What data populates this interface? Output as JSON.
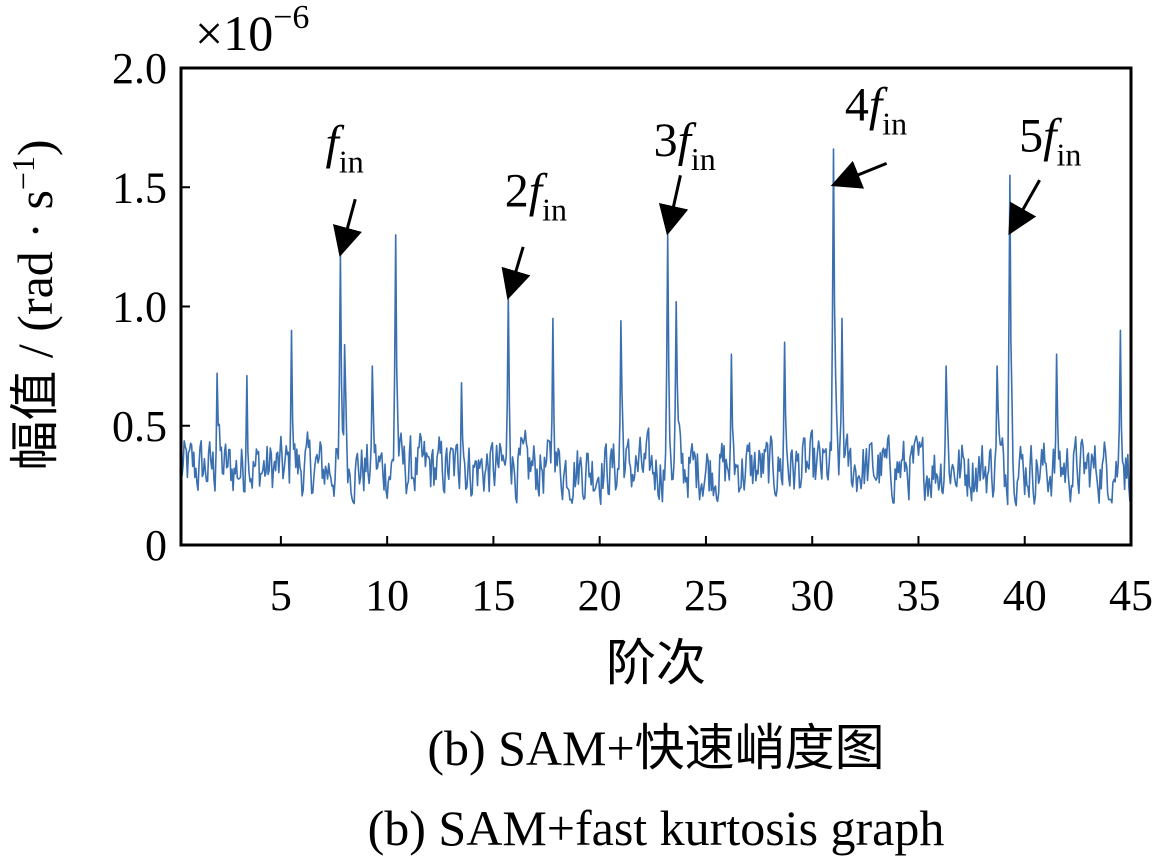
{
  "chart_data": {
    "type": "line",
    "scale_label_base": "×10",
    "scale_label_exp": "−6",
    "ylabel": "幅值 / (rad · s",
    "ylabel_sup": "−1",
    "ylabel_close": ")",
    "xlabel": "阶次",
    "xlim": [
      0.3,
      45
    ],
    "ylim": [
      0,
      2.0
    ],
    "xticks": [
      5,
      10,
      15,
      20,
      25,
      30,
      35,
      40,
      45
    ],
    "xtick_labels": [
      "5",
      "10",
      "15",
      "20",
      "25",
      "30",
      "35",
      "40",
      "45"
    ],
    "yticks": [
      0,
      0.5,
      1.0,
      1.5,
      2.0
    ],
    "ytick_labels": [
      "0",
      "0.5",
      "1.0",
      "1.5",
      "2.0"
    ],
    "line_color": "#3a6fb0",
    "series": [
      {
        "name": "SAM+快速峭度图",
        "step": 0.05,
        "base_level": 0.32,
        "noise_amplitude": 0.2,
        "peaks": [
          {
            "x": 2.0,
            "y": 0.72
          },
          {
            "x": 3.4,
            "y": 0.71
          },
          {
            "x": 5.5,
            "y": 0.9
          },
          {
            "x": 7.8,
            "y": 1.22
          },
          {
            "x": 8.0,
            "y": 0.84
          },
          {
            "x": 9.3,
            "y": 0.75
          },
          {
            "x": 10.4,
            "y": 1.3
          },
          {
            "x": 13.5,
            "y": 0.68
          },
          {
            "x": 15.7,
            "y": 1.05
          },
          {
            "x": 17.8,
            "y": 0.95
          },
          {
            "x": 21.0,
            "y": 0.94
          },
          {
            "x": 23.2,
            "y": 1.3
          },
          {
            "x": 23.6,
            "y": 1.02
          },
          {
            "x": 26.2,
            "y": 0.8
          },
          {
            "x": 28.7,
            "y": 0.85
          },
          {
            "x": 31.0,
            "y": 1.66
          },
          {
            "x": 31.4,
            "y": 0.95
          },
          {
            "x": 36.3,
            "y": 0.75
          },
          {
            "x": 38.7,
            "y": 0.75
          },
          {
            "x": 39.3,
            "y": 1.55
          },
          {
            "x": 41.5,
            "y": 0.8
          },
          {
            "x": 44.5,
            "y": 0.9
          }
        ]
      }
    ],
    "annotations": [
      {
        "main": "f",
        "sub": "in",
        "target_x": 7.8,
        "target_y": 1.22,
        "text_x": 8.0,
        "text_y": 1.62,
        "tail_x": 8.5,
        "tail_y": 1.45
      },
      {
        "main": "2f",
        "sub": "in",
        "target_x": 15.7,
        "target_y": 1.04,
        "text_x": 17.0,
        "text_y": 1.42,
        "tail_x": 16.4,
        "tail_y": 1.25
      },
      {
        "main": "3f",
        "sub": "in",
        "target_x": 23.2,
        "target_y": 1.31,
        "text_x": 24.0,
        "text_y": 1.63,
        "tail_x": 23.8,
        "tail_y": 1.55
      },
      {
        "main": "4f",
        "sub": "in",
        "target_x": 31.0,
        "target_y": 1.51,
        "text_x": 33.0,
        "text_y": 1.78,
        "tail_x": 33.5,
        "tail_y": 1.6
      },
      {
        "main": "5f",
        "sub": "in",
        "target_x": 39.3,
        "target_y": 1.31,
        "text_x": 41.2,
        "text_y": 1.65,
        "tail_x": 40.7,
        "tail_y": 1.53
      }
    ]
  },
  "captions": {
    "zh": "(b)  SAM+快速峭度图",
    "en": "(b)  SAM+fast kurtosis graph"
  }
}
